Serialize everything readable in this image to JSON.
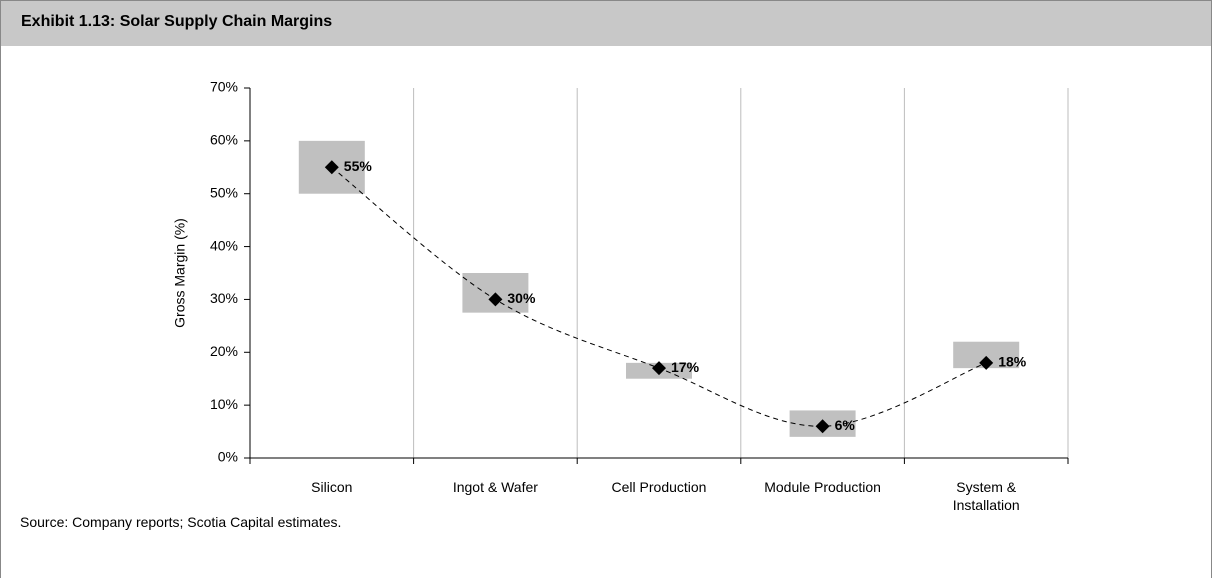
{
  "chart_data": {
    "type": "line",
    "title": "Exhibit 1.13: Solar Supply Chain Margins",
    "y_label": "Gross Margin (%)",
    "categories": [
      "Silicon",
      "Ingot & Wafer",
      "Cell Production",
      "Module Production",
      "System & Installation"
    ],
    "values": [
      55,
      30,
      17,
      6,
      18
    ],
    "value_labels": [
      "55%",
      "30%",
      "17%",
      "6%",
      "18%"
    ],
    "range_low": [
      50,
      27.5,
      15,
      4,
      17
    ],
    "range_high": [
      60,
      35,
      18,
      9,
      22
    ],
    "color": "#000000",
    "range_color": "#c0c0c0",
    "ylim": [
      0,
      70
    ],
    "yticks": [
      {
        "value": 0,
        "label": "0%"
      },
      {
        "value": 10,
        "label": "10%"
      },
      {
        "value": 20,
        "label": "20%"
      },
      {
        "value": 30,
        "label": "30%"
      },
      {
        "value": 40,
        "label": "40%"
      },
      {
        "value": 50,
        "label": "50%"
      },
      {
        "value": 60,
        "label": "60%"
      },
      {
        "value": 70,
        "label": "70%"
      }
    ],
    "source": "Source: Company reports; Scotia Capital estimates."
  }
}
